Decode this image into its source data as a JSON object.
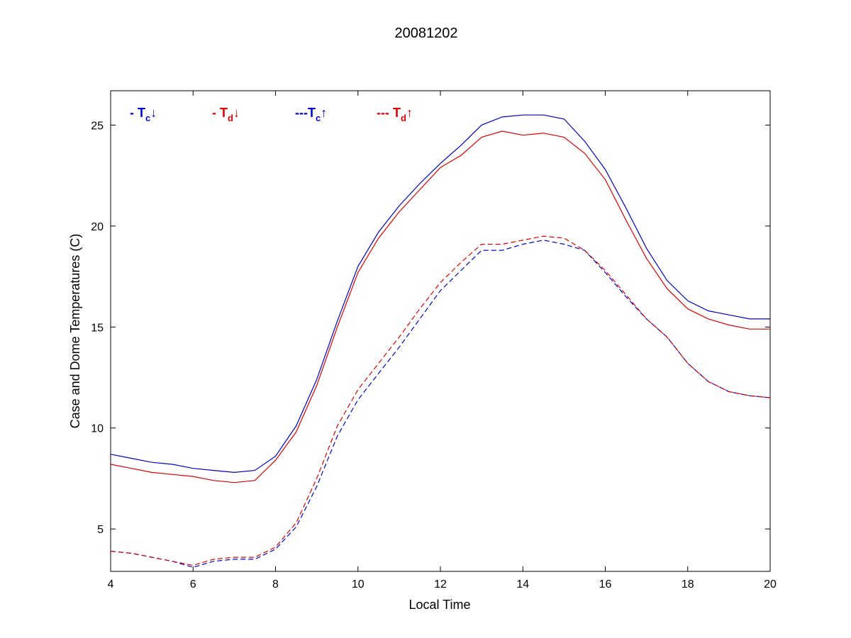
{
  "chart_data": {
    "type": "line",
    "title": "20081202",
    "xlabel": "Local Time",
    "ylabel": "Case and Dome Temperatures (C)",
    "xlim": [
      4,
      20
    ],
    "ylim": [
      2.9,
      26.7
    ],
    "xticks": [
      4,
      6,
      8,
      10,
      12,
      14,
      16,
      18,
      20
    ],
    "yticks": [
      5,
      10,
      15,
      20,
      25
    ],
    "grid": false,
    "legend_position": "top-left, inside plot",
    "legend": [
      {
        "prefix": "- ",
        "base": "T",
        "sub": "c",
        "arrow": "↓",
        "color": "#0000cc"
      },
      {
        "prefix": "- ",
        "base": "T",
        "sub": "d",
        "arrow": "↓",
        "color": "#dd0000"
      },
      {
        "prefix": "---",
        "base": "T",
        "sub": "c",
        "arrow": "↑",
        "color": "#0000cc"
      },
      {
        "prefix": "--- ",
        "base": "T",
        "sub": "d",
        "arrow": "↑",
        "color": "#dd0000"
      }
    ],
    "series": [
      {
        "key": "tc_down",
        "color": "#0000cc",
        "dashed": false,
        "x": [
          4.0,
          4.5,
          5.0,
          5.5,
          6.0,
          6.5,
          7.0,
          7.5,
          8.0,
          8.5,
          9.0,
          9.5,
          10.0,
          10.5,
          11.0,
          11.5,
          12.0,
          12.5,
          13.0,
          13.5,
          14.0,
          14.5,
          15.0,
          15.5,
          16.0,
          16.5,
          17.0,
          17.5,
          18.0,
          18.5,
          19.0,
          19.5,
          20.0
        ],
        "y": [
          8.7,
          8.5,
          8.3,
          8.2,
          8.0,
          7.9,
          7.8,
          7.9,
          8.6,
          10.1,
          12.4,
          15.3,
          18.0,
          19.7,
          21.0,
          22.1,
          23.1,
          24.0,
          25.0,
          25.4,
          25.5,
          25.5,
          25.3,
          24.2,
          22.8,
          20.9,
          18.9,
          17.3,
          16.3,
          15.8,
          15.6,
          15.4,
          15.4
        ]
      },
      {
        "key": "td_down",
        "color": "#dd0000",
        "dashed": false,
        "x": [
          4.0,
          4.5,
          5.0,
          5.5,
          6.0,
          6.5,
          7.0,
          7.5,
          8.0,
          8.5,
          9.0,
          9.5,
          10.0,
          10.5,
          11.0,
          11.5,
          12.0,
          12.5,
          13.0,
          13.5,
          14.0,
          14.5,
          15.0,
          15.5,
          16.0,
          16.5,
          17.0,
          17.5,
          18.0,
          18.5,
          19.0,
          19.5,
          20.0
        ],
        "y": [
          8.2,
          8.0,
          7.8,
          7.7,
          7.6,
          7.4,
          7.3,
          7.4,
          8.4,
          9.8,
          12.1,
          15.0,
          17.7,
          19.4,
          20.7,
          21.8,
          22.9,
          23.5,
          24.4,
          24.7,
          24.5,
          24.6,
          24.4,
          23.6,
          22.3,
          20.3,
          18.4,
          16.9,
          15.9,
          15.4,
          15.1,
          14.9,
          14.9
        ]
      },
      {
        "key": "tc_up",
        "color": "#0000cc",
        "dashed": true,
        "x": [
          4.0,
          4.5,
          5.0,
          5.5,
          6.0,
          6.5,
          7.0,
          7.5,
          8.0,
          8.5,
          9.0,
          9.5,
          10.0,
          10.5,
          11.0,
          11.5,
          12.0,
          12.5,
          13.0,
          13.5,
          14.0,
          14.5,
          15.0,
          15.5,
          16.0,
          16.5,
          17.0,
          17.5,
          18.0,
          18.5,
          19.0,
          19.5,
          20.0
        ],
        "y": [
          3.9,
          3.8,
          3.6,
          3.4,
          3.1,
          3.4,
          3.5,
          3.5,
          4.0,
          5.1,
          7.1,
          9.6,
          11.4,
          12.7,
          14.0,
          15.4,
          16.8,
          17.8,
          18.8,
          18.8,
          19.1,
          19.3,
          19.1,
          18.8,
          17.7,
          16.5,
          15.4,
          14.5,
          13.2,
          12.3,
          11.8,
          11.6,
          11.5
        ]
      },
      {
        "key": "td_up",
        "color": "#dd0000",
        "dashed": true,
        "x": [
          4.0,
          4.5,
          5.0,
          5.5,
          6.0,
          6.5,
          7.0,
          7.5,
          8.0,
          8.5,
          9.0,
          9.5,
          10.0,
          10.5,
          11.0,
          11.5,
          12.0,
          12.5,
          13.0,
          13.5,
          14.0,
          14.5,
          15.0,
          15.5,
          16.0,
          16.5,
          17.0,
          17.5,
          18.0,
          18.5,
          19.0,
          19.5,
          20.0
        ],
        "y": [
          3.9,
          3.8,
          3.6,
          3.4,
          3.2,
          3.5,
          3.6,
          3.6,
          4.1,
          5.3,
          7.5,
          10.1,
          11.9,
          13.2,
          14.5,
          15.9,
          17.2,
          18.2,
          19.1,
          19.1,
          19.3,
          19.5,
          19.4,
          18.8,
          17.8,
          16.6,
          15.4,
          14.5,
          13.2,
          12.3,
          11.8,
          11.6,
          11.5
        ]
      }
    ]
  }
}
